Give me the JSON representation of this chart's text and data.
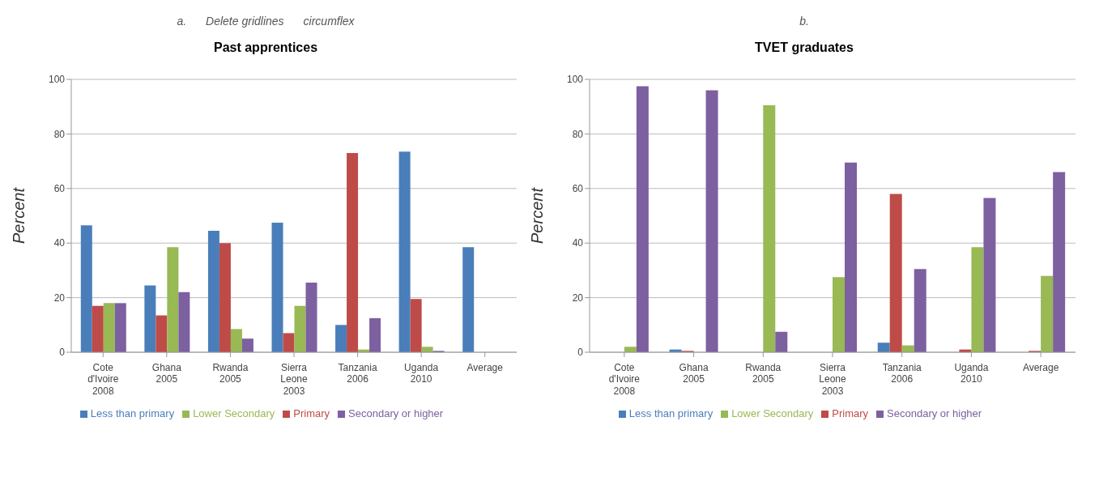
{
  "chart_data": [
    {
      "type": "bar",
      "title": "Past apprentices",
      "ylabel": "Percent",
      "annotations": [
        "a.",
        "Delete gridlines",
        "circumflex"
      ],
      "categories": [
        "Cote d'Ivoire 2008",
        "Ghana 2005",
        "Rwanda 2005",
        "Sierra Leone 2003",
        "Tanzania 2006",
        "Uganda 2010",
        "Average"
      ],
      "series": [
        {
          "name": "Less than primary",
          "color": "#4a7ebb",
          "values": [
            46.5,
            24.5,
            44.5,
            47.5,
            10,
            73.5,
            38.5
          ]
        },
        {
          "name": "Primary",
          "color": "#be4b48",
          "values": [
            17,
            13.5,
            40,
            7,
            73,
            19.5,
            null
          ]
        },
        {
          "name": "Lower Secondary",
          "color": "#98b954",
          "values": [
            18,
            38.5,
            8.5,
            17,
            1,
            2,
            null
          ]
        },
        {
          "name": "Secondary or higher",
          "color": "#7d60a0",
          "values": [
            18,
            22,
            5,
            25.5,
            12.5,
            0.5,
            null
          ]
        }
      ],
      "ylim": [
        0,
        100
      ],
      "yticks": [
        0,
        20,
        40,
        60,
        80,
        100
      ],
      "grid": "y",
      "legend": "bottom"
    },
    {
      "type": "bar",
      "title": "TVET graduates",
      "ylabel": "Percent",
      "annotations": [
        "b."
      ],
      "categories": [
        "Cote d'Ivoire 2008",
        "Ghana 2005",
        "Rwanda 2005",
        "Sierra Leone 2003",
        "Tanzania 2006",
        "Uganda 2010",
        "Average"
      ],
      "series": [
        {
          "name": "Less than primary",
          "color": "#4a7ebb",
          "values": [
            0,
            1,
            0,
            0,
            3.5,
            0,
            0
          ]
        },
        {
          "name": "Primary",
          "color": "#be4b48",
          "values": [
            0,
            0.5,
            0,
            0,
            58,
            1,
            0.5
          ]
        },
        {
          "name": "Lower Secondary",
          "color": "#98b954",
          "values": [
            2,
            0,
            90.5,
            27.5,
            2.5,
            38.5,
            28
          ]
        },
        {
          "name": "Secondary or higher",
          "color": "#7d60a0",
          "values": [
            97.5,
            96,
            7.5,
            69.5,
            30.5,
            56.5,
            66
          ]
        }
      ],
      "ylim": [
        0,
        100
      ],
      "yticks": [
        0,
        20,
        40,
        60,
        80,
        100
      ],
      "grid": "y",
      "legend": "bottom"
    }
  ]
}
